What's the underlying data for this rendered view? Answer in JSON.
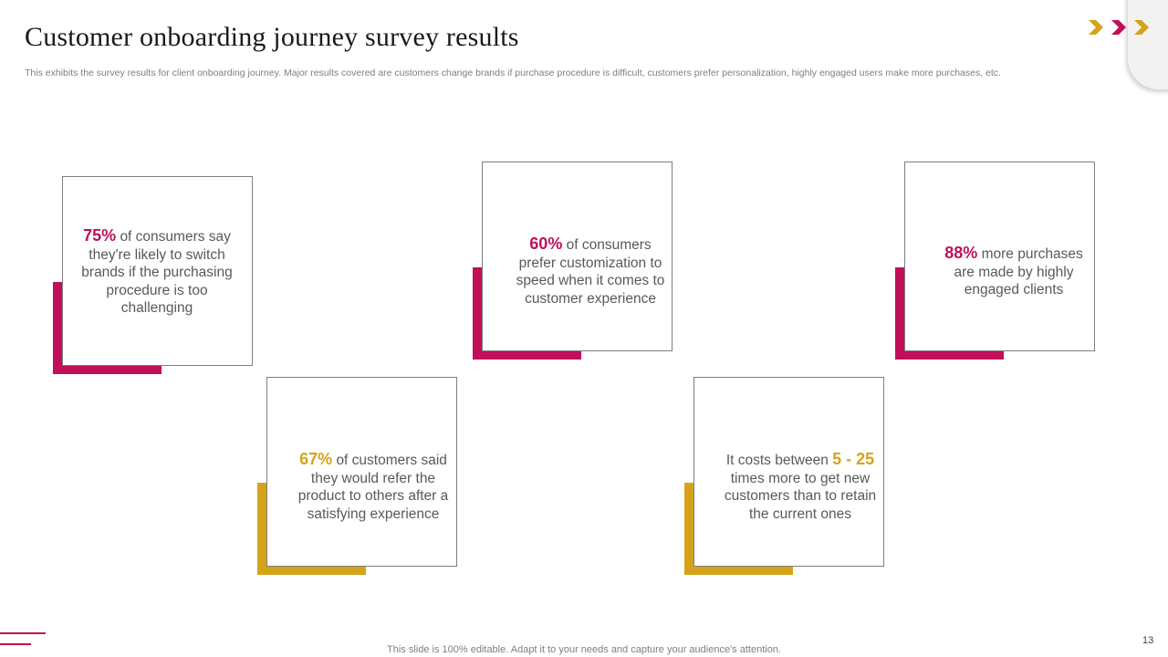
{
  "header": {
    "title": "Customer onboarding journey survey results",
    "subtitle": "This exhibits the survey results for client onboarding journey. Major results covered are customers change brands if purchase procedure is difficult, customers prefer personalization, highly engaged users make more purchases, etc."
  },
  "colors": {
    "magenta": "#c10f5a",
    "gold": "#d4a31a"
  },
  "cards": [
    {
      "highlight": "75%",
      "text": "of consumers say they're likely to switch brands if the purchasing procedure is too challenging"
    },
    {
      "highlight": "60%",
      "text": "of consumers prefer customization to speed when it comes to customer experience"
    },
    {
      "highlight": "88%",
      "text": "more purchases are made by highly engaged clients"
    },
    {
      "highlight": "67%",
      "text": "of customers said they would refer the product to others after a satisfying experience"
    },
    {
      "text_before": "It costs between",
      "highlight": "5 - 25",
      "text": "times more to get new customers than to retain the current ones"
    }
  ],
  "footer": {
    "note": "This slide is 100% editable. Adapt it to your needs and capture your audience's attention.",
    "page_number": "13"
  }
}
